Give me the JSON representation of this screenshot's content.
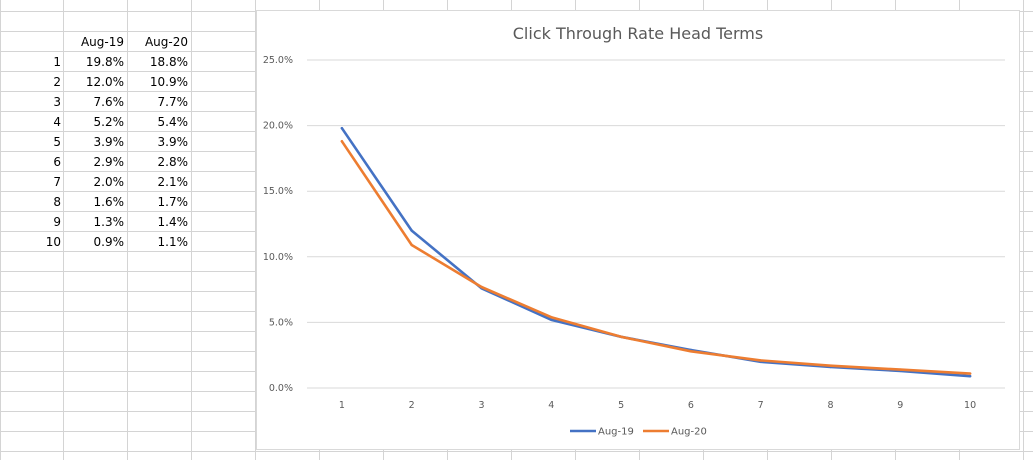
{
  "sheet": {
    "headers": [
      "Aug-19",
      "Aug-20"
    ],
    "rows": [
      {
        "n": "1",
        "a": "19.8%",
        "b": "18.8%"
      },
      {
        "n": "2",
        "a": "12.0%",
        "b": "10.9%"
      },
      {
        "n": "3",
        "a": "7.6%",
        "b": "7.7%"
      },
      {
        "n": "4",
        "a": "5.2%",
        "b": "5.4%"
      },
      {
        "n": "5",
        "a": "3.9%",
        "b": "3.9%"
      },
      {
        "n": "6",
        "a": "2.9%",
        "b": "2.8%"
      },
      {
        "n": "7",
        "a": "2.0%",
        "b": "2.1%"
      },
      {
        "n": "8",
        "a": "1.6%",
        "b": "1.7%"
      },
      {
        "n": "9",
        "a": "1.3%",
        "b": "1.4%"
      },
      {
        "n": "10",
        "a": "0.9%",
        "b": "1.1%"
      }
    ]
  },
  "chart_data": {
    "type": "line",
    "title": "Click Through Rate Head Terms",
    "xlabel": "",
    "ylabel": "",
    "categories": [
      "1",
      "2",
      "3",
      "4",
      "5",
      "6",
      "7",
      "8",
      "9",
      "10"
    ],
    "y_ticks": [
      "0.0%",
      "5.0%",
      "10.0%",
      "15.0%",
      "20.0%",
      "25.0%"
    ],
    "ylim": [
      0,
      25
    ],
    "grid": true,
    "legend_position": "bottom",
    "series": [
      {
        "name": "Aug-19",
        "color": "#4472C4",
        "values": [
          19.8,
          12.0,
          7.6,
          5.2,
          3.9,
          2.9,
          2.0,
          1.6,
          1.3,
          0.9
        ]
      },
      {
        "name": "Aug-20",
        "color": "#ED7D31",
        "values": [
          18.8,
          10.9,
          7.7,
          5.4,
          3.9,
          2.8,
          2.1,
          1.7,
          1.4,
          1.1
        ]
      }
    ]
  }
}
